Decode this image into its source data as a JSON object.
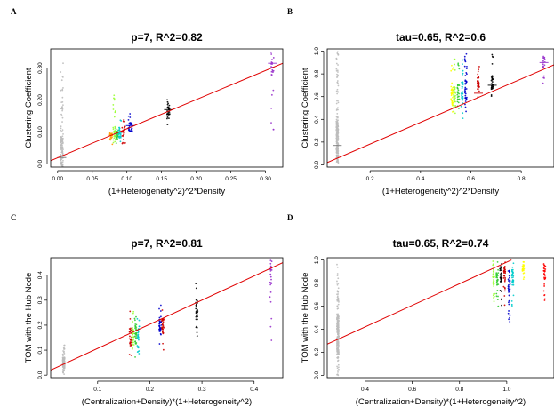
{
  "chart_data": [
    {
      "letter": "A",
      "type": "scatter",
      "title": "p=7, R^2=0.82",
      "xlabel": "(1+Heterogeneity^2)^2*Density",
      "ylabel": "Clustering Coefficient",
      "xlim": [
        -0.01,
        0.325
      ],
      "ylim": [
        -0.01,
        0.36
      ],
      "xticks": [
        "0.00",
        "0.05",
        "0.10",
        "0.15",
        "0.20",
        "0.25",
        "0.30"
      ],
      "xtick_values": [
        0,
        0.05,
        0.1,
        0.15,
        0.2,
        0.25,
        0.3
      ],
      "yticks": [
        "0.0",
        "0.10",
        "0.20",
        "0.30"
      ],
      "ytick_values": [
        0,
        0.1,
        0.2,
        0.3
      ],
      "fit_line": {
        "x": [
          -0.01,
          0.325
        ],
        "y": [
          0.01,
          0.315
        ]
      },
      "clusters": [
        {
          "color": "#bdbdbd",
          "x": 0.006,
          "xspread": 0.002,
          "ymin": 0.0,
          "ymax": 0.33,
          "ycenter": 0.03,
          "n": 140,
          "mean": 0.02
        },
        {
          "color": "#ff9900",
          "x": 0.077,
          "xspread": 0.002,
          "ymin": 0.06,
          "ymax": 0.12,
          "ycenter": 0.085,
          "n": 20
        },
        {
          "color": "#99ff33",
          "x": 0.082,
          "xspread": 0.002,
          "ymin": 0.06,
          "ymax": 0.22,
          "ycenter": 0.09,
          "n": 30
        },
        {
          "color": "#33cc33",
          "x": 0.086,
          "xspread": 0.002,
          "ymin": 0.06,
          "ymax": 0.13,
          "ycenter": 0.09,
          "n": 25
        },
        {
          "color": "#00cccc",
          "x": 0.09,
          "xspread": 0.002,
          "ymin": 0.06,
          "ymax": 0.14,
          "ycenter": 0.095,
          "n": 25
        },
        {
          "color": "#cc0000",
          "x": 0.095,
          "xspread": 0.003,
          "ymin": 0.06,
          "ymax": 0.14,
          "ycenter": 0.1,
          "n": 30,
          "mean": 0.1
        },
        {
          "color": "#0000cc",
          "x": 0.105,
          "xspread": 0.003,
          "ymin": 0.08,
          "ymax": 0.16,
          "ycenter": 0.115,
          "n": 40,
          "mean": 0.12
        },
        {
          "color": "#000000",
          "x": 0.16,
          "xspread": 0.002,
          "ymin": 0.12,
          "ymax": 0.21,
          "ycenter": 0.17,
          "n": 30,
          "mean": 0.17
        },
        {
          "color": "#9933cc",
          "x": 0.31,
          "xspread": 0.002,
          "ymin": 0.1,
          "ymax": 0.34,
          "ycenter": 0.32,
          "n": 25,
          "mean": 0.315
        }
      ]
    },
    {
      "letter": "B",
      "type": "scatter",
      "title": "tau=0.65, R^2=0.6",
      "xlabel": "(1+Heterogeneity^2)^2*Density",
      "ylabel": "Clustering Coefficient",
      "xlim": [
        0.03,
        0.93
      ],
      "ylim": [
        -0.02,
        1.02
      ],
      "xticks": [
        "0.2",
        "0.4",
        "0.6",
        "0.8"
      ],
      "xtick_values": [
        0.2,
        0.4,
        0.6,
        0.8
      ],
      "yticks": [
        "0.0",
        "0.2",
        "0.4",
        "0.6",
        "0.8",
        "1.0"
      ],
      "ytick_values": [
        0,
        0.2,
        0.4,
        0.6,
        0.8,
        1.0
      ],
      "fit_line": {
        "x": [
          0.03,
          0.93
        ],
        "y": [
          0.02,
          0.88
        ]
      },
      "clusters": [
        {
          "color": "#bdbdbd",
          "x": 0.07,
          "xspread": 0.004,
          "ymin": 0.0,
          "ymax": 1.0,
          "ycenter": 0.2,
          "n": 220,
          "mean": 0.17
        },
        {
          "color": "#ffff00",
          "x": 0.525,
          "xspread": 0.004,
          "ymin": 0.45,
          "ymax": 0.95,
          "ycenter": 0.6,
          "n": 30
        },
        {
          "color": "#99ff33",
          "x": 0.535,
          "xspread": 0.004,
          "ymin": 0.45,
          "ymax": 0.95,
          "ycenter": 0.6,
          "n": 35
        },
        {
          "color": "#33cc33",
          "x": 0.55,
          "xspread": 0.004,
          "ymin": 0.45,
          "ymax": 0.95,
          "ycenter": 0.62,
          "n": 30
        },
        {
          "color": "#00cccc",
          "x": 0.565,
          "xspread": 0.004,
          "ymin": 0.4,
          "ymax": 0.95,
          "ycenter": 0.65,
          "n": 35
        },
        {
          "color": "#0000cc",
          "x": 0.58,
          "xspread": 0.004,
          "ymin": 0.45,
          "ymax": 0.98,
          "ycenter": 0.65,
          "n": 40,
          "mean": 0.57
        },
        {
          "color": "#cc0000",
          "x": 0.63,
          "xspread": 0.004,
          "ymin": 0.55,
          "ymax": 0.98,
          "ycenter": 0.7,
          "n": 40,
          "mean": 0.63
        },
        {
          "color": "#000000",
          "x": 0.685,
          "xspread": 0.004,
          "ymin": 0.6,
          "ymax": 0.98,
          "ycenter": 0.72,
          "n": 35,
          "mean": 0.7
        },
        {
          "color": "#9933cc",
          "x": 0.89,
          "xspread": 0.004,
          "ymin": 0.7,
          "ymax": 0.98,
          "ycenter": 0.9,
          "n": 20,
          "mean": 0.9
        }
      ]
    },
    {
      "letter": "C",
      "type": "scatter",
      "title": "p=7, R^2=0.81",
      "xlabel": "(Centralization+Density)*(1+Heterogeneity^2)",
      "ylabel": "TOM with the Hub Node",
      "xlim": [
        0.01,
        0.455
      ],
      "ylim": [
        -0.01,
        0.47
      ],
      "xticks": [
        "0.1",
        "0.2",
        "0.3",
        "0.4"
      ],
      "xtick_values": [
        0.1,
        0.2,
        0.3,
        0.4
      ],
      "yticks": [
        "0.0",
        "0.1",
        "0.2",
        "0.3",
        "0.4"
      ],
      "ytick_values": [
        0,
        0.1,
        0.2,
        0.3,
        0.4
      ],
      "fit_line": {
        "x": [
          0.01,
          0.455
        ],
        "y": [
          0.02,
          0.45
        ]
      },
      "clusters": [
        {
          "color": "#bdbdbd",
          "x": 0.035,
          "xspread": 0.002,
          "ymin": 0.0,
          "ymax": 0.12,
          "ycenter": 0.05,
          "n": 140
        },
        {
          "color": "#cc0000",
          "x": 0.163,
          "xspread": 0.002,
          "ymin": 0.05,
          "ymax": 0.26,
          "ycenter": 0.15,
          "n": 30
        },
        {
          "color": "#99ff33",
          "x": 0.168,
          "xspread": 0.002,
          "ymin": 0.06,
          "ymax": 0.28,
          "ycenter": 0.16,
          "n": 35
        },
        {
          "color": "#33cc33",
          "x": 0.173,
          "xspread": 0.002,
          "ymin": 0.06,
          "ymax": 0.26,
          "ycenter": 0.16,
          "n": 30
        },
        {
          "color": "#00cccc",
          "x": 0.178,
          "xspread": 0.002,
          "ymin": 0.08,
          "ymax": 0.25,
          "ycenter": 0.17,
          "n": 25
        },
        {
          "color": "#0000cc",
          "x": 0.22,
          "xspread": 0.002,
          "ymin": 0.1,
          "ymax": 0.28,
          "ycenter": 0.2,
          "n": 40
        },
        {
          "color": "#cc0000",
          "x": 0.225,
          "xspread": 0.002,
          "ymin": 0.1,
          "ymax": 0.27,
          "ycenter": 0.2,
          "n": 30
        },
        {
          "color": "#000000",
          "x": 0.29,
          "xspread": 0.002,
          "ymin": 0.15,
          "ymax": 0.37,
          "ycenter": 0.27,
          "n": 35
        },
        {
          "color": "#9933cc",
          "x": 0.432,
          "xspread": 0.002,
          "ymin": 0.08,
          "ymax": 0.47,
          "ycenter": 0.42,
          "n": 30
        }
      ]
    },
    {
      "letter": "D",
      "type": "scatter",
      "title": "tau=0.65, R^2=0.74",
      "xlabel": "(Centralization+Density)*(1+Heterogeneity^2)",
      "ylabel": "TOM with the Hub Node",
      "xlim": [
        0.24,
        1.2
      ],
      "ylim": [
        -0.02,
        1.02
      ],
      "xticks": [
        "0.4",
        "0.6",
        "0.8",
        "1.0"
      ],
      "xtick_values": [
        0.4,
        0.6,
        0.8,
        1.0
      ],
      "yticks": [
        "0.0",
        "0.2",
        "0.4",
        "0.6",
        "0.8",
        "1.0"
      ],
      "ytick_values": [
        0,
        0.2,
        0.4,
        0.6,
        0.8,
        1.0
      ],
      "fit_line": {
        "x": [
          0.24,
          1.02
        ],
        "y": [
          0.27,
          1.0
        ]
      },
      "clusters": [
        {
          "color": "#bdbdbd",
          "x": 0.285,
          "xspread": 0.004,
          "ymin": 0.0,
          "ymax": 0.98,
          "ycenter": 0.35,
          "n": 220
        },
        {
          "color": "#99ff33",
          "x": 0.945,
          "xspread": 0.004,
          "ymin": 0.55,
          "ymax": 0.99,
          "ycenter": 0.85,
          "n": 30
        },
        {
          "color": "#33cc33",
          "x": 0.96,
          "xspread": 0.004,
          "ymin": 0.55,
          "ymax": 0.99,
          "ycenter": 0.85,
          "n": 30
        },
        {
          "color": "#000000",
          "x": 0.975,
          "xspread": 0.004,
          "ymin": 0.6,
          "ymax": 0.99,
          "ycenter": 0.88,
          "n": 30
        },
        {
          "color": "#cc0000",
          "x": 0.99,
          "xspread": 0.004,
          "ymin": 0.6,
          "ymax": 0.99,
          "ycenter": 0.88,
          "n": 30
        },
        {
          "color": "#0000cc",
          "x": 1.01,
          "xspread": 0.004,
          "ymin": 0.45,
          "ymax": 0.99,
          "ycenter": 0.82,
          "n": 40
        },
        {
          "color": "#00cccc",
          "x": 1.025,
          "xspread": 0.004,
          "ymin": 0.6,
          "ymax": 0.99,
          "ycenter": 0.85,
          "n": 35
        },
        {
          "color": "#ffff00",
          "x": 1.07,
          "xspread": 0.004,
          "ymin": 0.75,
          "ymax": 0.99,
          "ycenter": 0.92,
          "n": 25
        },
        {
          "color": "#ff0000",
          "x": 1.16,
          "xspread": 0.004,
          "ymin": 0.6,
          "ymax": 0.99,
          "ycenter": 0.9,
          "n": 30
        }
      ]
    }
  ]
}
